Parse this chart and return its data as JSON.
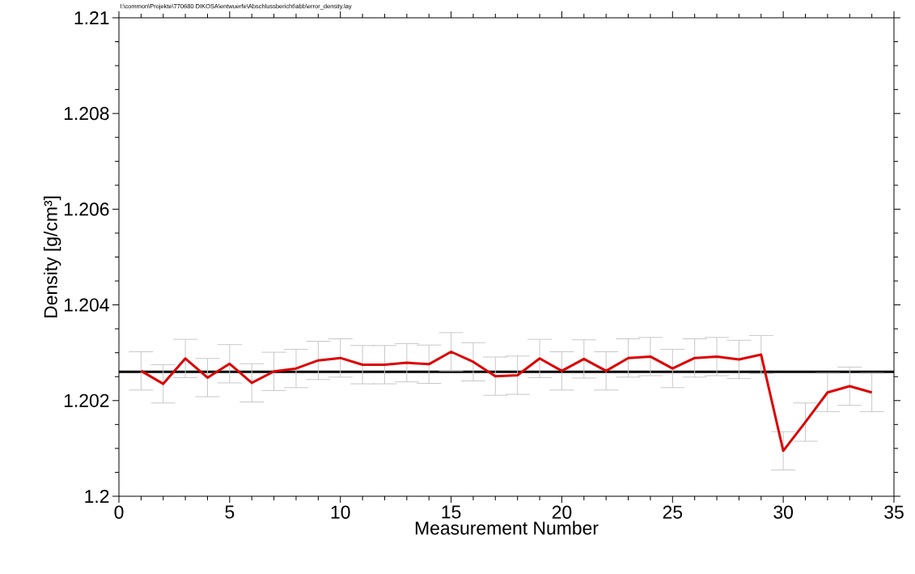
{
  "chart_data": {
    "type": "line",
    "xlabel": "Measurement Number",
    "ylabel": "Density [g/cm³]",
    "annotations": [
      "I:\\common\\Projekte\\770680 DIKOSA\\entwuerfe\\Abschlussbericht\\abb\\error_density.lay"
    ],
    "x": [
      1,
      2,
      3,
      4,
      5,
      6,
      7,
      8,
      9,
      10,
      11,
      12,
      13,
      14,
      15,
      16,
      17,
      18,
      19,
      20,
      21,
      22,
      23,
      24,
      25,
      26,
      27,
      28,
      29,
      30,
      31,
      32,
      33,
      34
    ],
    "series": [
      {
        "color": "#dd0000",
        "values": [
          1.20262,
          1.20235,
          1.20288,
          1.20248,
          1.20277,
          1.20237,
          1.20261,
          1.20267,
          1.20284,
          1.20289,
          1.20275,
          1.20275,
          1.20279,
          1.20276,
          1.20302,
          1.20281,
          1.20251,
          1.20253,
          1.20288,
          1.20262,
          1.20287,
          1.20262,
          1.20289,
          1.20292,
          1.20267,
          1.20289,
          1.20292,
          1.20286,
          1.20296,
          1.20095,
          1.20155,
          1.20217,
          1.2023,
          1.20217
        ],
        "errors": [
          0.0004,
          0.0004,
          0.0004,
          0.0004,
          0.0004,
          0.0004,
          0.0004,
          0.0004,
          0.0004,
          0.0004,
          0.0004,
          0.0004,
          0.0004,
          0.0004,
          0.0004,
          0.0004,
          0.0004,
          0.0004,
          0.0004,
          0.0004,
          0.0004,
          0.0004,
          0.0004,
          0.0004,
          0.0004,
          0.0004,
          0.0004,
          0.0004,
          0.0004,
          0.0004,
          0.0004,
          0.0004,
          0.0004,
          0.0004
        ]
      }
    ],
    "ref_lines": [
      {
        "axis": "y",
        "value": 1.2026,
        "color": "#000000"
      }
    ],
    "xlim": [
      0,
      35
    ],
    "xticks": [
      0,
      5,
      10,
      15,
      20,
      25,
      30,
      35
    ],
    "ylim": [
      1.2,
      1.21
    ],
    "yticks": [
      1.2,
      1.202,
      1.204,
      1.206,
      1.208,
      1.21
    ]
  }
}
